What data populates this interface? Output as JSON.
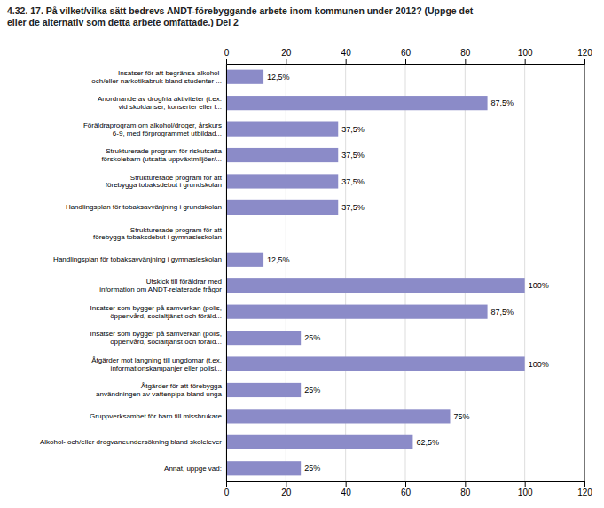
{
  "chart_data": {
    "type": "bar",
    "orientation": "horizontal",
    "title": "4.32. 17. På vilket/vilka sätt bedrevs ANDT-förebyggande arbete inom kommunen under 2012? (Uppge det\neller de alternativ som detta arbete omfattade.) Del 2",
    "categories": [
      "Insatser för att begränsa alkohol-\noch/eller narkotikabruk bland studenter ...",
      "Anordnande av drogfria aktiviteter (t.ex.\nvid skoldanser, konserter eller l...",
      "Föräldraprogram om alkohol/droger, årskurs\n6-9, med förprogrammet utbildad...",
      "Strukturerade program för riskutsatta\nförskolebarn (utsatta uppväxtmiljöer/...",
      "Strukturerade program för att\nförebygga tobaksdebut i grundskolan",
      "Handlingsplan för tobaksavvänjning i grundskolan",
      "Strukturerade program för att\nförebygga tobaksdebut i gymnasieskolan",
      "Handlingsplan för tobaksavvänjning i gymnasieskolan",
      "Utskick till föräldrar med\ninformation om ANDT-relaterade frågor",
      "Insatser som bygger på samverkan (polis,\nöppenvård, socialtjänst och föräld...",
      "Insatser som bygger på samverkan (polis,\nöppenvård, socialtjänst och föräld...",
      "Åtgärder mot langning till ungdomar (t.ex.\ninformationskampanjer eller polisi...",
      "Åtgärder för att förebygga\nanvändningen av vattenpipa bland unga",
      "Gruppverksamhet för barn till missbrukare",
      "Alkohol- och/eller drogvaneundersökning bland skolelever",
      "Annat, uppge vad:"
    ],
    "values": [
      12.5,
      87.5,
      37.5,
      37.5,
      37.5,
      37.5,
      0,
      12.5,
      100,
      87.5,
      25,
      100,
      25,
      75,
      62.5,
      25
    ],
    "value_labels": [
      "12,5%",
      "87,5%",
      "37,5%",
      "37,5%",
      "37,5%",
      "37,5%",
      null,
      "12,5%",
      "100%",
      "87,5%",
      "25%",
      "100%",
      "25%",
      "75%",
      "62,5%",
      "25%"
    ],
    "data_labels": true,
    "color": "#8b8bc8",
    "xlim": [
      0,
      120
    ],
    "xticks": [
      0,
      20,
      40,
      60,
      80,
      100,
      120
    ],
    "grid": true
  }
}
